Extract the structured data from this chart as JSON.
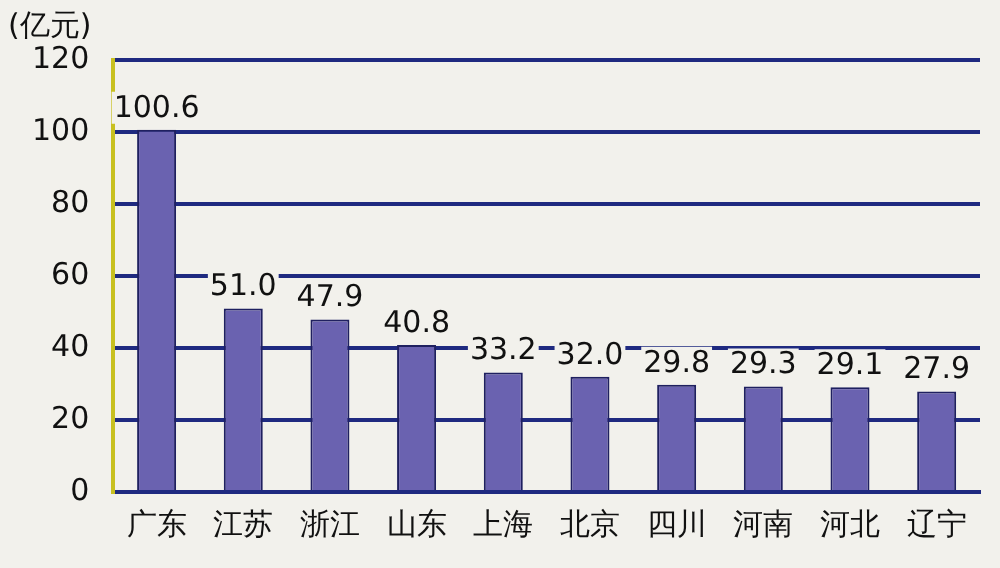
{
  "chart_data": {
    "type": "bar",
    "ylabel": "(亿元)",
    "categories": [
      "广东",
      "江苏",
      "浙江",
      "山东",
      "上海",
      "北京",
      "四川",
      "河南",
      "河北",
      "辽宁"
    ],
    "values": [
      100.6,
      51.0,
      47.9,
      40.8,
      33.2,
      32.0,
      29.8,
      29.3,
      29.1,
      27.9
    ],
    "value_labels": [
      "100.6",
      "51.0",
      "47.9",
      "40.8",
      "33.2",
      "32.0",
      "29.8",
      "29.3",
      "29.1",
      "27.9"
    ],
    "color": "#6a62b0",
    "ylim": [
      0,
      120
    ],
    "yticks": [
      0,
      20,
      40,
      60,
      80,
      100,
      120
    ],
    "grid": "y"
  }
}
